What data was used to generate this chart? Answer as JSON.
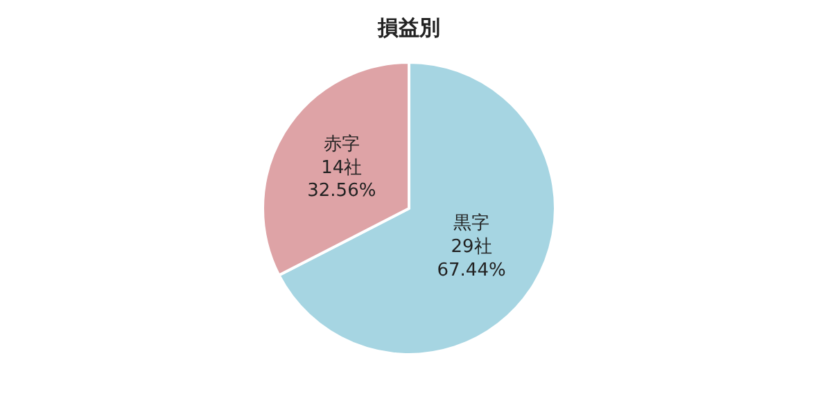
{
  "chart_data": {
    "type": "pie",
    "title": "損益別",
    "categories": [
      "黒字",
      "赤字"
    ],
    "values": [
      29,
      14
    ],
    "value_labels": [
      "29社\n67.44%",
      "14社\n32.56%"
    ],
    "colors": [
      "#a6d5e2",
      "#dea3a6"
    ],
    "legend": false
  }
}
